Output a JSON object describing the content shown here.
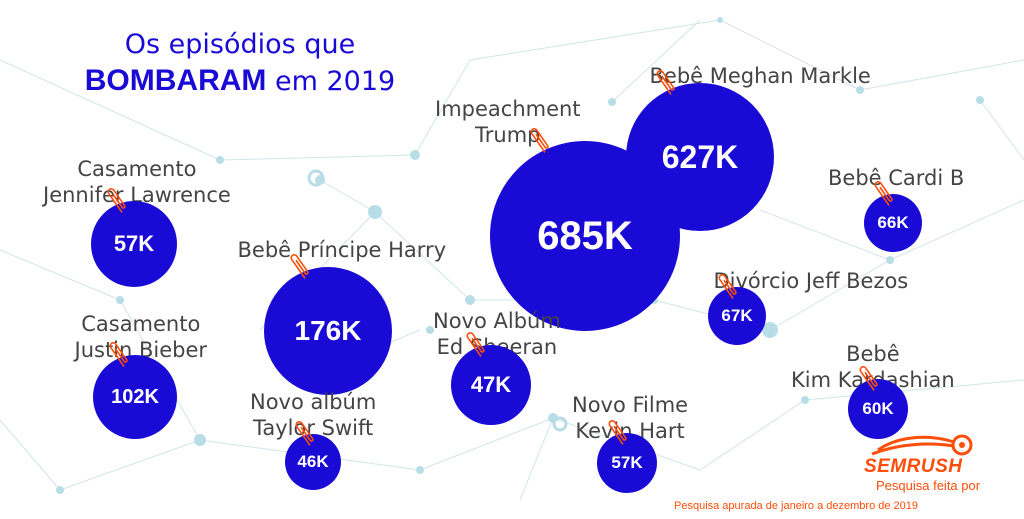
{
  "title": {
    "line1": "Os episódios que",
    "bold": "BOMBARAM",
    "rest": "em 2019"
  },
  "brand": {
    "name": "SEMRUSH",
    "by": "Pesquisa feita por"
  },
  "footnote": "Pesquisa apurada de janeiro a dezembro de 2019",
  "colors": {
    "bubble": "#1a0ad6",
    "accent": "#ff4d0a",
    "network": "#b9dde6"
  },
  "chart_data": {
    "type": "bubble",
    "items": [
      {
        "label": [
          "Casamento",
          "Jennifer Lawrence"
        ],
        "value_label": "57K",
        "value": 57000
      },
      {
        "label": [
          "Bebê Príncipe Harry"
        ],
        "value_label": "176K",
        "value": 176000
      },
      {
        "label": [
          "Impeachment",
          "Trump"
        ],
        "value_label": "685K",
        "value": 685000
      },
      {
        "label": [
          "Bebê Meghan Markle"
        ],
        "value_label": "627K",
        "value": 627000
      },
      {
        "label": [
          "Bebê Cardi B"
        ],
        "value_label": "66K",
        "value": 66000
      },
      {
        "label": [
          "Divórcio Jeff Bezos"
        ],
        "value_label": "67K",
        "value": 67000
      },
      {
        "label": [
          "Casamento",
          "Justin Bieber"
        ],
        "value_label": "102K",
        "value": 102000
      },
      {
        "label": [
          "Novo Albúm",
          "Ed Sheeran"
        ],
        "value_label": "47K",
        "value": 47000
      },
      {
        "label": [
          "Novo albúm",
          "Taylor Swift"
        ],
        "value_label": "46K",
        "value": 46000
      },
      {
        "label": [
          "Novo Filme",
          "Kevin Hart"
        ],
        "value_label": "57K",
        "value": 57000
      },
      {
        "label": [
          "Bebê",
          "Kim Kardashian"
        ],
        "value_label": "60K",
        "value": 60000
      }
    ]
  }
}
